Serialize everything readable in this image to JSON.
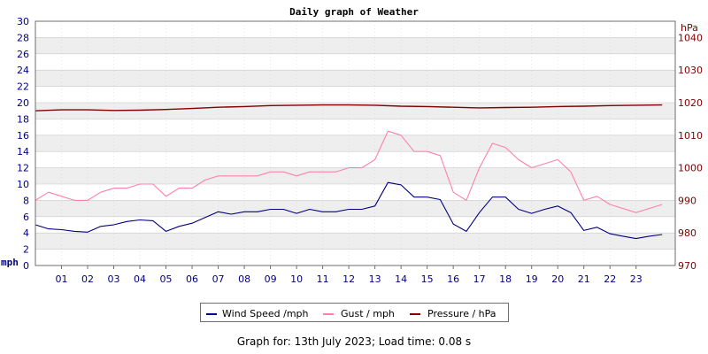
{
  "chart_data": {
    "type": "line",
    "title": "Daily graph of Weather",
    "x_tick_labels": [
      "01",
      "02",
      "03",
      "04",
      "05",
      "06",
      "07",
      "08",
      "09",
      "10",
      "11",
      "12",
      "13",
      "14",
      "15",
      "16",
      "17",
      "18",
      "19",
      "20",
      "21",
      "22",
      "23"
    ],
    "xlim_hours": [
      0,
      24.5
    ],
    "y_left": {
      "label": "mph",
      "ylim": [
        0,
        30
      ],
      "ticks": [
        0,
        2,
        4,
        6,
        8,
        10,
        12,
        14,
        16,
        18,
        20,
        22,
        24,
        26,
        28,
        30
      ]
    },
    "y_right": {
      "label": "hPa",
      "ylim": [
        970,
        1045
      ],
      "ticks": [
        970,
        980,
        990,
        1000,
        1010,
        1020,
        1030,
        1040
      ]
    },
    "grid": true,
    "legend_placement": "bottom-center",
    "series": [
      {
        "name": "Wind Speed /mph",
        "axis": "left",
        "color": "#000080",
        "x": [
          0,
          0.5,
          1,
          1.5,
          2,
          2.5,
          3,
          3.5,
          4,
          4.5,
          5,
          5.5,
          6,
          6.5,
          7,
          7.5,
          8,
          8.5,
          9,
          9.5,
          10,
          10.5,
          11,
          11.5,
          12,
          12.5,
          13,
          13.5,
          14,
          14.5,
          15,
          15.5,
          16,
          16.5,
          17,
          17.5,
          18,
          18.5,
          19,
          19.5,
          20,
          20.5,
          21,
          21.5,
          22,
          22.5,
          23,
          23.5,
          24
        ],
        "values": [
          5,
          4.5,
          4.4,
          4.2,
          4.1,
          4.8,
          5,
          5.4,
          5.6,
          5.5,
          4.2,
          4.8,
          5.2,
          5.9,
          6.6,
          6.3,
          6.6,
          6.6,
          6.9,
          6.9,
          6.4,
          6.9,
          6.6,
          6.6,
          6.9,
          6.9,
          7.3,
          10.2,
          9.9,
          8.4,
          8.4,
          8.1,
          5.1,
          4.2,
          6.5,
          8.4,
          8.4,
          6.9,
          6.4,
          6.9,
          7.3,
          6.5,
          4.3,
          4.7,
          3.9,
          3.6,
          3.3,
          3.6,
          3.8
        ]
      },
      {
        "name": "Gust / mph",
        "axis": "left",
        "color": "#ff80aa",
        "x": [
          0,
          0.5,
          1,
          1.5,
          2,
          2.5,
          3,
          3.5,
          4,
          4.5,
          5,
          5.5,
          6,
          6.5,
          7,
          7.5,
          8,
          8.5,
          9,
          9.5,
          10,
          10.5,
          11,
          11.5,
          12,
          12.5,
          13,
          13.5,
          14,
          14.5,
          15,
          15.5,
          16,
          16.5,
          17,
          17.5,
          18,
          18.5,
          19,
          19.5,
          20,
          20.5,
          21,
          21.5,
          22,
          22.5,
          23,
          23.5,
          24
        ],
        "values": [
          8,
          9,
          8.5,
          8,
          8,
          9,
          9.5,
          9.5,
          10,
          10,
          8.5,
          9.5,
          9.5,
          10.5,
          11,
          11,
          11,
          11,
          11.5,
          11.5,
          11,
          11.5,
          11.5,
          11.5,
          12,
          12,
          13,
          16.5,
          16,
          14,
          14,
          13.5,
          9,
          8,
          12,
          15,
          14.5,
          13,
          12,
          12.5,
          13,
          11.5,
          8,
          8.5,
          7.5,
          7,
          6.5,
          7,
          7.5
        ]
      },
      {
        "name": "Pressure / hPa",
        "axis": "right",
        "color": "#800000",
        "x": [
          0,
          1,
          2,
          3,
          4,
          5,
          6,
          7,
          8,
          9,
          10,
          11,
          12,
          13,
          14,
          15,
          16,
          17,
          18,
          19,
          20,
          21,
          22,
          23,
          24
        ],
        "values": [
          1017.5,
          1017.8,
          1017.8,
          1017.6,
          1017.7,
          1017.9,
          1018.2,
          1018.6,
          1018.8,
          1019.1,
          1019.2,
          1019.3,
          1019.3,
          1019.2,
          1018.9,
          1018.8,
          1018.6,
          1018.4,
          1018.5,
          1018.6,
          1018.8,
          1018.9,
          1019.1,
          1019.2,
          1019.3
        ]
      }
    ]
  },
  "footer": {
    "prefix": "Graph for:",
    "date": "13th July 2023",
    "load_label": "; Load time:",
    "load_time": "0.08 s"
  },
  "colors": {
    "band": "#eeeeee",
    "grid": "#c8c8c8",
    "left_axis_text": "#000080",
    "right_axis_text": "#800000",
    "frame": "#6e6e6e"
  }
}
